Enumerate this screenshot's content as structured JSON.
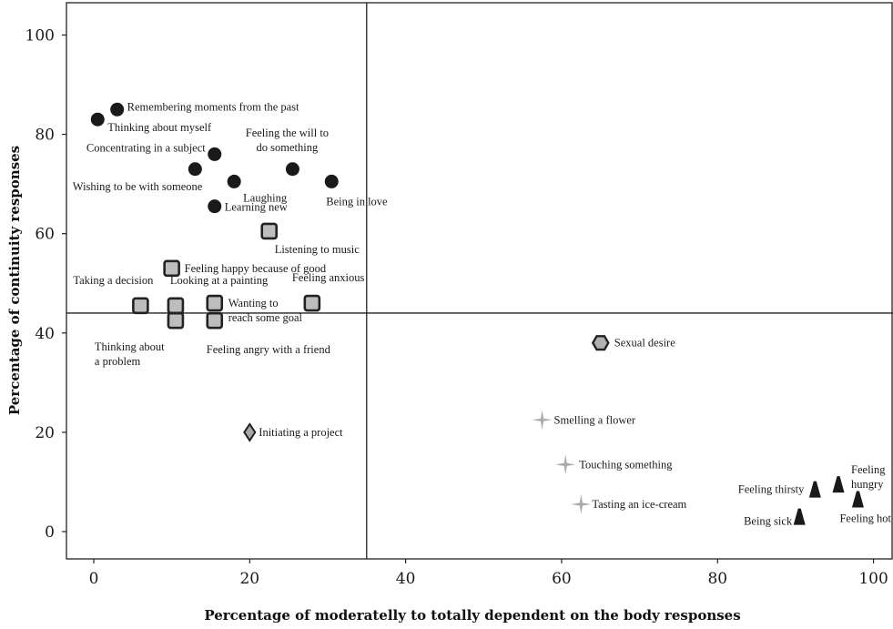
{
  "chart_data": {
    "type": "scatter",
    "xlabel": "Percentage of moderatelly to totally dependent on the body responses",
    "ylabel": "Percentage of continuity responses",
    "xlim": [
      -3.5,
      102.5
    ],
    "ylim": [
      -5.5,
      106.5
    ],
    "xticks": [
      0,
      20,
      40,
      60,
      80,
      100
    ],
    "yticks": [
      0,
      20,
      40,
      60,
      80,
      100
    ],
    "reference_lines": {
      "x": 35,
      "y": 44
    },
    "grid": false,
    "legend": "none",
    "colors": {
      "circle": "#1a1a1a",
      "square": "#bdbdbd",
      "diamond": "#a8a8a8",
      "hexagon": "#b0b0b0",
      "star": "#aaaaaa",
      "triangle": "#1a1a1a"
    },
    "points": [
      {
        "label": "Remembering moments from the past",
        "x": 3,
        "y": 85,
        "marker": "circle"
      },
      {
        "label": "Thinking about myself",
        "x": 0.5,
        "y": 83,
        "marker": "circle"
      },
      {
        "label": "Concentrating in a subject",
        "x": 15.5,
        "y": 76,
        "marker": "circle"
      },
      {
        "label": "Wishing to be with someone",
        "x": 13,
        "y": 73,
        "marker": "circle"
      },
      {
        "label": "Feeling the will to do something",
        "x": 25.5,
        "y": 73,
        "marker": "circle"
      },
      {
        "label": "Laughing",
        "x": 18,
        "y": 70.5,
        "marker": "circle"
      },
      {
        "label": "Being in love",
        "x": 30.5,
        "y": 70.5,
        "marker": "circle"
      },
      {
        "label": "Learning new",
        "x": 15.5,
        "y": 65.5,
        "marker": "circle"
      },
      {
        "label": "Listening to music",
        "x": 22.5,
        "y": 60.5,
        "marker": "square"
      },
      {
        "label": "Feeling happy because of good",
        "x": 10,
        "y": 53,
        "marker": "square"
      },
      {
        "label": "Taking a decision",
        "x": 6,
        "y": 45.5,
        "marker": "square"
      },
      {
        "label": "Looking at a painting",
        "x": 10.5,
        "y": 45.5,
        "marker": "square"
      },
      {
        "label": "Wanting to reach some goal",
        "x": 15.5,
        "y": 46,
        "marker": "square"
      },
      {
        "label": "Feeling anxious",
        "x": 28,
        "y": 46,
        "marker": "square"
      },
      {
        "label": "Thinking about a problem",
        "x": 10.5,
        "y": 42.5,
        "marker": "square"
      },
      {
        "label": "Feeling angry with a friend",
        "x": 15.5,
        "y": 42.5,
        "marker": "square"
      },
      {
        "label": "Sexual desire",
        "x": 65,
        "y": 38,
        "marker": "hexagon"
      },
      {
        "label": "Smelling a flower",
        "x": 57.5,
        "y": 22.5,
        "marker": "star"
      },
      {
        "label": "Initiating a project",
        "x": 20,
        "y": 20,
        "marker": "diamond"
      },
      {
        "label": "Touching something",
        "x": 60.5,
        "y": 13.5,
        "marker": "star"
      },
      {
        "label": "Feeling thirsty",
        "x": 92.5,
        "y": 8.5,
        "marker": "triangle"
      },
      {
        "label": "Feeling hungry",
        "x": 95.5,
        "y": 9.5,
        "marker": "triangle"
      },
      {
        "label": "Feeling hot",
        "x": 98,
        "y": 6.5,
        "marker": "triangle"
      },
      {
        "label": "Tasting an ice-cream",
        "x": 62.5,
        "y": 5.5,
        "marker": "star"
      },
      {
        "label": "Being sick",
        "x": 90.5,
        "y": 3,
        "marker": "triangle"
      }
    ]
  }
}
